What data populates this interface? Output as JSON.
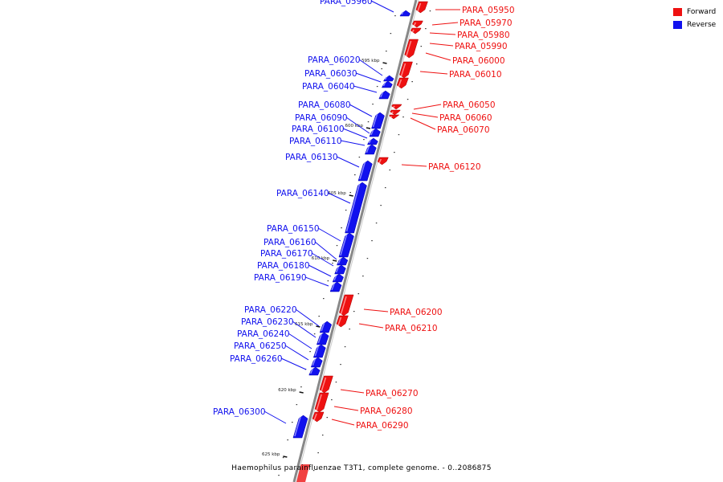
{
  "colors": {
    "forward": "#ee1111",
    "reverse": "#1111ee",
    "backbone": "#888888"
  },
  "legend": [
    {
      "label": "Forward",
      "color": "#ee1111"
    },
    {
      "label": "Reverse",
      "color": "#1111ee"
    }
  ],
  "ticks": [
    "595 kbp",
    "600 kbp",
    "605 kbp",
    "610 kbp",
    "615 kbp",
    "620 kbp",
    "625 kbp"
  ],
  "genes": [
    {
      "label": "PARA_05950",
      "strand": "forward"
    },
    {
      "label": "PARA_05960",
      "strand": "reverse"
    },
    {
      "label": "PARA_05970",
      "strand": "forward"
    },
    {
      "label": "PARA_05980",
      "strand": "forward"
    },
    {
      "label": "PARA_05990",
      "strand": "forward"
    },
    {
      "label": "PARA_06000",
      "strand": "forward"
    },
    {
      "label": "PARA_06010",
      "strand": "forward"
    },
    {
      "label": "PARA_06020",
      "strand": "reverse"
    },
    {
      "label": "PARA_06030",
      "strand": "reverse"
    },
    {
      "label": "PARA_06040",
      "strand": "reverse"
    },
    {
      "label": "PARA_06050",
      "strand": "forward"
    },
    {
      "label": "PARA_06060",
      "strand": "forward"
    },
    {
      "label": "PARA_06070",
      "strand": "forward"
    },
    {
      "label": "PARA_06080",
      "strand": "reverse"
    },
    {
      "label": "PARA_06090",
      "strand": "reverse"
    },
    {
      "label": "PARA_06100",
      "strand": "reverse"
    },
    {
      "label": "PARA_06110",
      "strand": "reverse"
    },
    {
      "label": "PARA_06120",
      "strand": "forward"
    },
    {
      "label": "PARA_06130",
      "strand": "reverse"
    },
    {
      "label": "PARA_06140",
      "strand": "reverse"
    },
    {
      "label": "PARA_06150",
      "strand": "reverse"
    },
    {
      "label": "PARA_06160",
      "strand": "reverse"
    },
    {
      "label": "PARA_06170",
      "strand": "reverse"
    },
    {
      "label": "PARA_06180",
      "strand": "reverse"
    },
    {
      "label": "PARA_06190",
      "strand": "reverse"
    },
    {
      "label": "PARA_06200",
      "strand": "forward"
    },
    {
      "label": "PARA_06210",
      "strand": "forward"
    },
    {
      "label": "PARA_06220",
      "strand": "reverse"
    },
    {
      "label": "PARA_06230",
      "strand": "reverse"
    },
    {
      "label": "PARA_06240",
      "strand": "reverse"
    },
    {
      "label": "PARA_06250",
      "strand": "reverse"
    },
    {
      "label": "PARA_06260",
      "strand": "reverse"
    },
    {
      "label": "PARA_06270",
      "strand": "forward"
    },
    {
      "label": "PARA_06280",
      "strand": "forward"
    },
    {
      "label": "PARA_06290",
      "strand": "forward"
    },
    {
      "label": "PARA_06300",
      "strand": "reverse"
    }
  ],
  "caption": "Haemophilus parainfluenzae T3T1, complete genome. - 0..2086875"
}
